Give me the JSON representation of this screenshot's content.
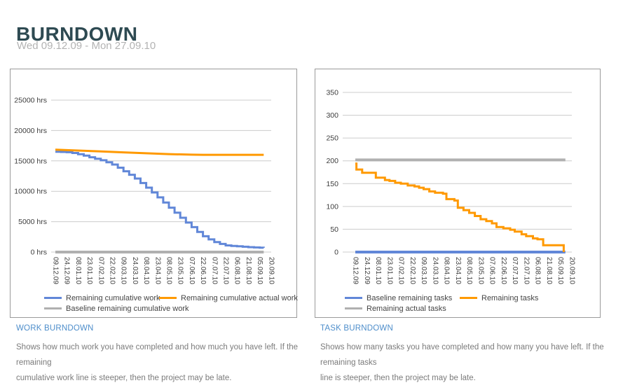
{
  "header": {
    "title": "BURNDOWN",
    "date_range": "Wed 09.12.09 - Mon 27.09.10"
  },
  "colors": {
    "blue": "#6187d8",
    "orange": "#ff9900",
    "gray": "#b0b0b0",
    "grid": "#cccccc",
    "axis_text": "#3d3d3d"
  },
  "chart_data": [
    {
      "type": "line",
      "title": "WORK BURNDOWN",
      "description": "Shows how much work you have completed and how much you have left. If the remaining\ncumulative work line is steeper, then the project may be late.",
      "categories": [
        "09.12.09",
        "24.12.09",
        "08.01.10",
        "23.01.10",
        "07.02.10",
        "22.02.10",
        "09.03.10",
        "24.03.10",
        "08.04.10",
        "23.04.10",
        "08.05.10",
        "23.05.10",
        "07.06.10",
        "22.06.10",
        "07.07.10",
        "22.07.10",
        "06.08.10",
        "21.08.10",
        "05.09.10",
        "20.09.10"
      ],
      "ylim": [
        0,
        25000
      ],
      "yticks": [
        0,
        5000,
        10000,
        15000,
        20000,
        25000
      ],
      "ytick_labels": [
        "0 hrs",
        "5000 hrs",
        "10000 hrs",
        "15000 hrs",
        "20000 hrs",
        "25000 hrs"
      ],
      "grid": true,
      "legend_position": "bottom",
      "legend": [
        {
          "label": "Remaining cumulative work",
          "color": "#6187d8"
        },
        {
          "label": "Remaining cumulative actual work",
          "color": "#ff9900"
        },
        {
          "label": "Baseline remaining cumulative work",
          "color": "#b0b0b0"
        }
      ],
      "series": [
        {
          "name": "Remaining cumulative work",
          "color": "#6187d8",
          "mode": "step",
          "width": 3,
          "points": [
            [
              0,
              16500
            ],
            [
              0.5,
              16480
            ],
            [
              1,
              16430
            ],
            [
              1.5,
              16300
            ],
            [
              2,
              16100
            ],
            [
              2.5,
              15860
            ],
            [
              3,
              15600
            ],
            [
              3.5,
              15350
            ],
            [
              4,
              15100
            ],
            [
              4.5,
              14780
            ],
            [
              5,
              14400
            ],
            [
              5.5,
              13880
            ],
            [
              6,
              13300
            ],
            [
              6.5,
              12720
            ],
            [
              7,
              12100
            ],
            [
              7.5,
              11360
            ],
            [
              8,
              10600
            ],
            [
              8.5,
              9800
            ],
            [
              9,
              9000
            ],
            [
              9.5,
              8150
            ],
            [
              10,
              7300
            ],
            [
              10.5,
              6470
            ],
            [
              11,
              5650
            ],
            [
              11.5,
              4850
            ],
            [
              12,
              4100
            ],
            [
              12.5,
              3320
            ],
            [
              13,
              2600
            ],
            [
              13.5,
              2080
            ],
            [
              14,
              1650
            ],
            [
              14.5,
              1340
            ],
            [
              15,
              1100
            ],
            [
              15.5,
              1000
            ],
            [
              16,
              940
            ],
            [
              16.5,
              870
            ],
            [
              17,
              810
            ],
            [
              17.5,
              760
            ],
            [
              18,
              710
            ],
            [
              18.35,
              700
            ]
          ]
        },
        {
          "name": "Remaining cumulative actual work",
          "color": "#ff9900",
          "mode": "line",
          "width": 3,
          "points": [
            [
              0,
              16850
            ],
            [
              2,
              16700
            ],
            [
              4,
              16550
            ],
            [
              6,
              16400
            ],
            [
              8,
              16250
            ],
            [
              10,
              16120
            ],
            [
              12,
              16030
            ],
            [
              13,
              16000
            ],
            [
              18.35,
              16000
            ]
          ]
        },
        {
          "name": "Baseline remaining cumulative work",
          "color": "#b0b0b0",
          "mode": "line",
          "width": 4,
          "points": [
            [
              0,
              0
            ],
            [
              18.35,
              0
            ]
          ]
        }
      ]
    },
    {
      "type": "line",
      "title": "TASK BURNDOWN",
      "description": "Shows how many tasks you have completed and how many you have left. If the remaining tasks\nline is steeper, then the project may be late.",
      "categories": [
        "09.12.09",
        "24.12.09",
        "08.01.10",
        "23.01.10",
        "07.02.10",
        "22.02.10",
        "09.03.10",
        "24.03.10",
        "08.04.10",
        "23.04.10",
        "08.05.10",
        "23.05.10",
        "07.06.10",
        "22.06.10",
        "07.07.10",
        "22.07.10",
        "06.08.10",
        "21.08.10",
        "05.09.10",
        "20.09.10"
      ],
      "ylim": [
        0,
        350
      ],
      "yticks": [
        0,
        50,
        100,
        150,
        200,
        250,
        300,
        350
      ],
      "ytick_labels": [
        "0",
        "50",
        "100",
        "150",
        "200",
        "250",
        "300",
        "350"
      ],
      "grid": true,
      "legend_position": "bottom",
      "legend": [
        {
          "label": "Baseline remaining tasks",
          "color": "#6187d8"
        },
        {
          "label": "Remaining tasks",
          "color": "#ff9900"
        },
        {
          "label": "Remaining actual tasks",
          "color": "#b0b0b0"
        }
      ],
      "series": [
        {
          "name": "Baseline remaining tasks",
          "color": "#6187d8",
          "mode": "line",
          "width": 4,
          "points": [
            [
              0,
              0
            ],
            [
              18.45,
              0
            ]
          ]
        },
        {
          "name": "Remaining tasks",
          "color": "#ff9900",
          "mode": "step",
          "width": 3,
          "points": [
            [
              0,
              194
            ],
            [
              0.1,
              181
            ],
            [
              0.6,
              174
            ],
            [
              1.8,
              163
            ],
            [
              2.6,
              158
            ],
            [
              3,
              156
            ],
            [
              3.5,
              152
            ],
            [
              4,
              150
            ],
            [
              4.6,
              146
            ],
            [
              5.2,
              144
            ],
            [
              5.6,
              141
            ],
            [
              6,
              138
            ],
            [
              6.5,
              133
            ],
            [
              7,
              130
            ],
            [
              7.7,
              128
            ],
            [
              8,
              116
            ],
            [
              8.7,
              113
            ],
            [
              9,
              97
            ],
            [
              9.5,
              92
            ],
            [
              10,
              86
            ],
            [
              10.5,
              79
            ],
            [
              11,
              72
            ],
            [
              11.5,
              68
            ],
            [
              12,
              63
            ],
            [
              12.4,
              55
            ],
            [
              13,
              52
            ],
            [
              13.6,
              49
            ],
            [
              14,
              45
            ],
            [
              14.6,
              39
            ],
            [
              15,
              35
            ],
            [
              15.6,
              30
            ],
            [
              16,
              28
            ],
            [
              16.5,
              15
            ],
            [
              18.3,
              15
            ],
            [
              18.3,
              0
            ]
          ]
        },
        {
          "name": "Remaining actual tasks",
          "color": "#b0b0b0",
          "mode": "line",
          "width": 4,
          "points": [
            [
              0,
              202
            ],
            [
              18.45,
              202
            ]
          ]
        }
      ]
    }
  ]
}
